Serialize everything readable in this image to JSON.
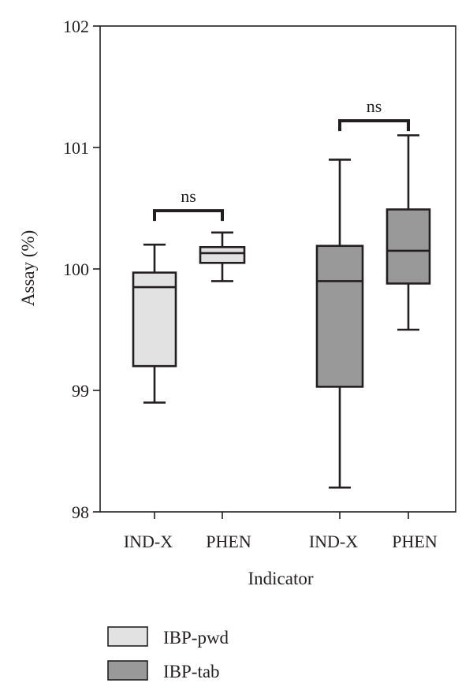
{
  "chart_data": {
    "type": "box",
    "ylabel": "Assay (%)",
    "xlabel": "Indicator",
    "ylim": [
      98,
      102
    ],
    "yticks": [
      98,
      99,
      100,
      101,
      102
    ],
    "categories": [
      "IND-X",
      "PHEN",
      "IND-X",
      "PHEN"
    ],
    "series": [
      {
        "name": "IBP-pwd",
        "color": "#e2e2e2",
        "boxes": [
          {
            "category": "IND-X",
            "min": 98.9,
            "q1": 99.2,
            "median": 99.85,
            "q3": 99.97,
            "max": 100.2
          },
          {
            "category": "PHEN",
            "min": 99.9,
            "q1": 100.05,
            "median": 100.13,
            "q3": 100.18,
            "max": 100.3
          }
        ]
      },
      {
        "name": "IBP-tab",
        "color": "#999999",
        "boxes": [
          {
            "category": "IND-X",
            "min": 98.2,
            "q1": 99.03,
            "median": 99.9,
            "q3": 100.19,
            "max": 100.9
          },
          {
            "category": "PHEN",
            "min": 99.5,
            "q1": 99.88,
            "median": 100.15,
            "q3": 100.49,
            "max": 101.1
          }
        ]
      }
    ],
    "annotations": [
      {
        "text": "ns",
        "group": "IBP-pwd",
        "y": 100.48
      },
      {
        "text": "ns",
        "group": "IBP-tab",
        "y": 101.22
      }
    ],
    "grid": false,
    "legend_position": "bottom-left"
  }
}
